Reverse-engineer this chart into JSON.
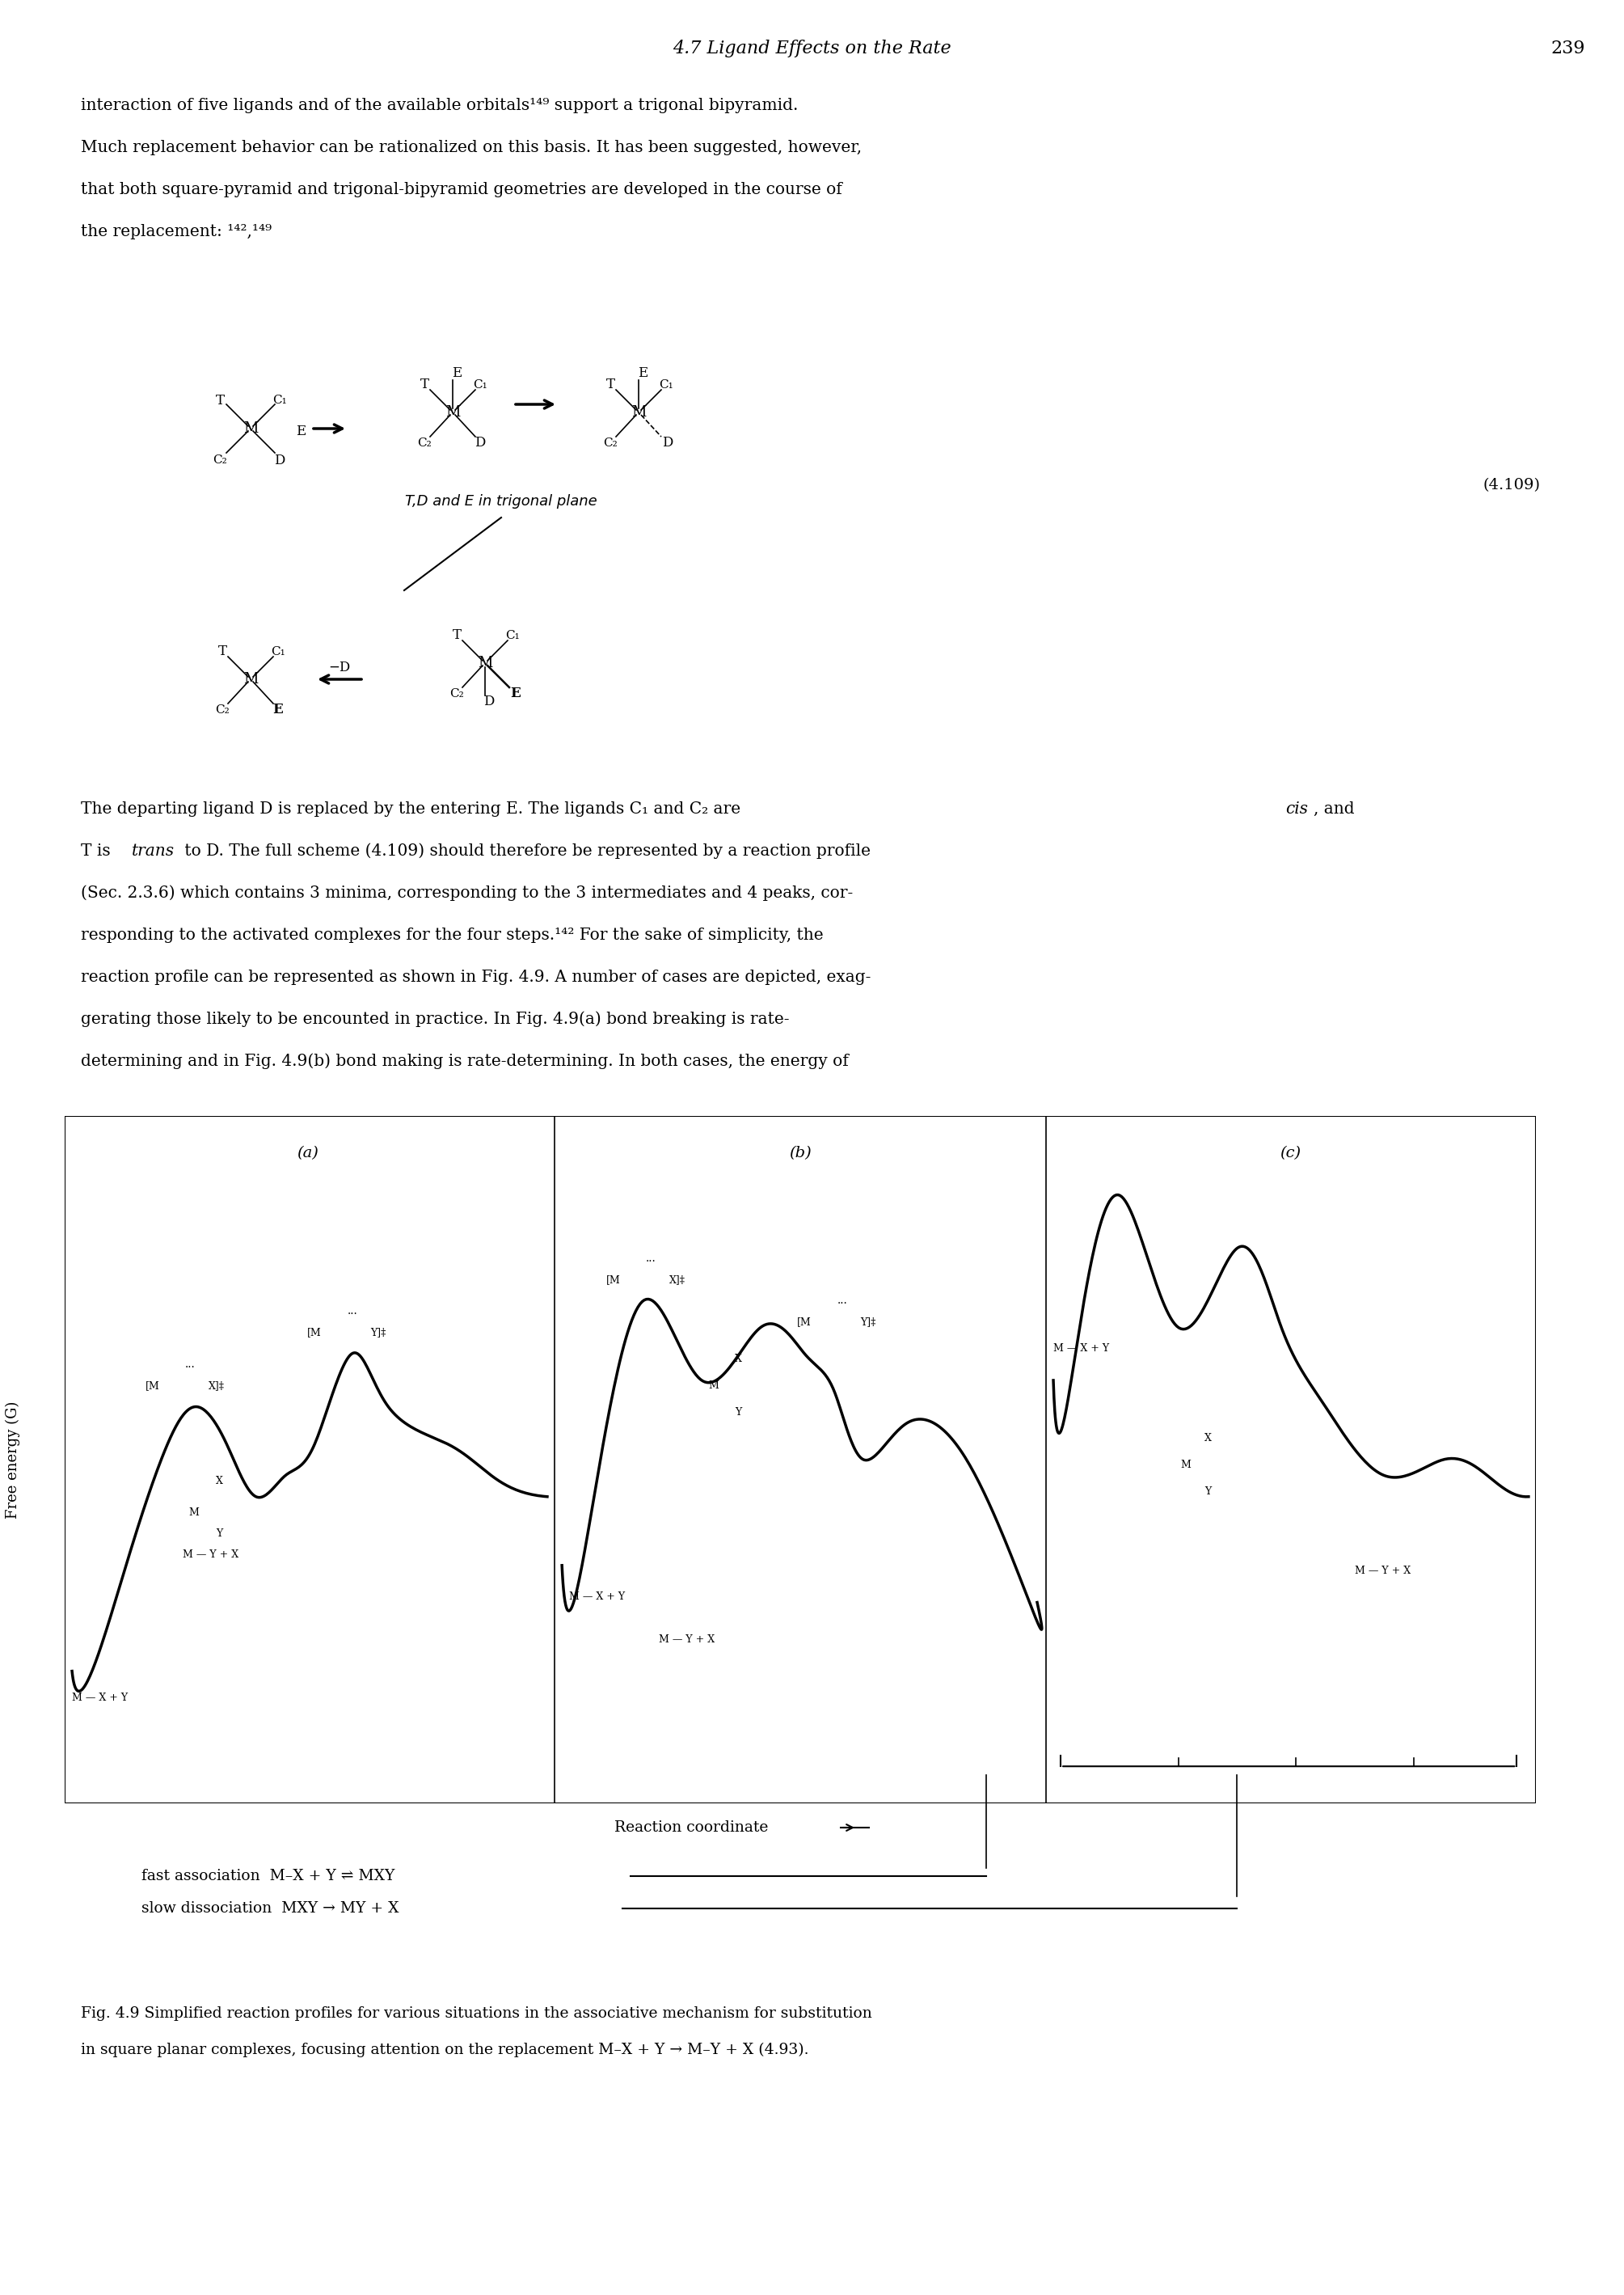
{
  "page_header": "4.7 Ligand Effects on the Rate",
  "page_number": "239",
  "body_text_lines": [
    "interaction of five ligands and of the available orbitals¹⁴⁹ support a trigonal bipyramid.",
    "Much replacement behavior can be rationalized on this basis. It has been suggested, however,",
    "that both square-pyramid and trigonal-bipyramid geometries are developed in the course of",
    "the replacement: ¹⁴²,¹⁴⁹"
  ],
  "body_text2_lines": [
    "The departing ligand D is replaced by the entering E. The ligands C₁ and C₂ are cis, and",
    "T is trans to D. The full scheme (4.109) should therefore be represented by a reaction profile",
    "(Sec. 2.3.6) which contains 3 minima, corresponding to the 3 intermediates and 4 peaks, cor-",
    "responding to the activated complexes for the four steps.¹⁴² For the sake of simplicity, the",
    "reaction profile can be represented as shown in Fig. 4.9. A number of cases are depicted, exag-",
    "gerating those likely to be encounted in practice. In Fig. 4.9(a) bond breaking is rate-",
    "determining and in Fig. 4.9(b) bond making is rate-determining. In both cases, the energy of"
  ],
  "fig_label_a": "(a)",
  "fig_label_b": "(b)",
  "fig_label_c": "(c)",
  "ylabel": "Free energy (G)",
  "xlabel": "Reaction coordinate",
  "annotation1": "fast association  M–X + Y ⇌ MXY",
  "annotation2": "slow dissociation  MXY → MY + X",
  "fig_caption_line1": "Fig. 4.9 Simplified reaction profiles for various situations in the associative mechanism for substitution",
  "fig_caption_line2": "in square planar complexes, focusing attention on the replacement M–X + Y → M–Y + X (4.93).",
  "equation_label": "(4.109)",
  "equation_note": "T,D and E in trigonal plane",
  "bg_color": "#ffffff",
  "text_color": "#000000"
}
